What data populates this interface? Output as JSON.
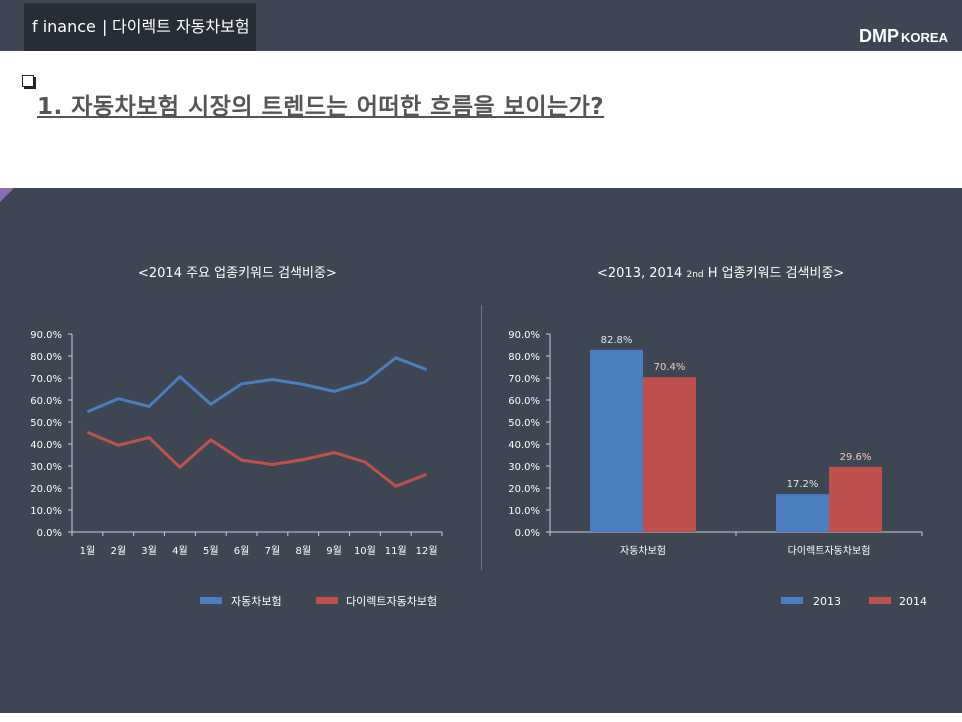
{
  "header": {
    "tab_part1": "f inance",
    "tab_sep": "|",
    "tab_part2": "다이렉트 자동차보험",
    "brand_main": "DMP",
    "brand_sub": "KOREA"
  },
  "heading": "1. 자동차보험 시장의 트렌드는 어떠한 흐름을 보이는가?",
  "colors": {
    "blue": "#4a7ebf",
    "red": "#c0504d",
    "background": "#3d4652"
  },
  "chart_data": [
    {
      "type": "line",
      "title": "<2014 주요 업종키워드 검색비중>",
      "categories": [
        "1월",
        "2월",
        "3월",
        "4월",
        "5월",
        "6월",
        "7월",
        "8월",
        "9월",
        "10월",
        "11월",
        "12월"
      ],
      "series": [
        {
          "name": "자동차보험",
          "values": [
            54.7,
            60.6,
            57.1,
            70.6,
            58.1,
            67.3,
            69.3,
            67.1,
            63.9,
            68.2,
            79.2,
            73.8
          ]
        },
        {
          "name": "다이렉트자동차보험",
          "values": [
            45.3,
            39.4,
            42.9,
            29.4,
            41.9,
            32.7,
            30.7,
            32.9,
            36.1,
            31.8,
            20.8,
            26.2
          ]
        }
      ],
      "ylim": [
        0,
        90
      ],
      "yticks": [
        "0.0%",
        "10.0%",
        "20.0%",
        "30.0%",
        "40.0%",
        "50.0%",
        "60.0%",
        "70.0%",
        "80.0%",
        "90.0%"
      ],
      "legend": "bottom"
    },
    {
      "type": "bar",
      "title_pre": "<2013, 2014 ",
      "title_sub": "2nd",
      "title_post": " H 업종키워드 검색비중>",
      "categories": [
        "자동차보험",
        "다이렉트자동차보험"
      ],
      "series": [
        {
          "name": "2013",
          "values": [
            82.8,
            17.2
          ],
          "labels": [
            "82.8%",
            "17.2%"
          ]
        },
        {
          "name": "2014",
          "values": [
            70.4,
            29.6
          ],
          "labels": [
            "70.4%",
            "29.6%"
          ]
        }
      ],
      "ylim": [
        0,
        90
      ],
      "yticks": [
        "0.0%",
        "10.0%",
        "20.0%",
        "30.0%",
        "40.0%",
        "50.0%",
        "60.0%",
        "70.0%",
        "80.0%",
        "90.0%"
      ],
      "legend": "bottom-right"
    }
  ]
}
